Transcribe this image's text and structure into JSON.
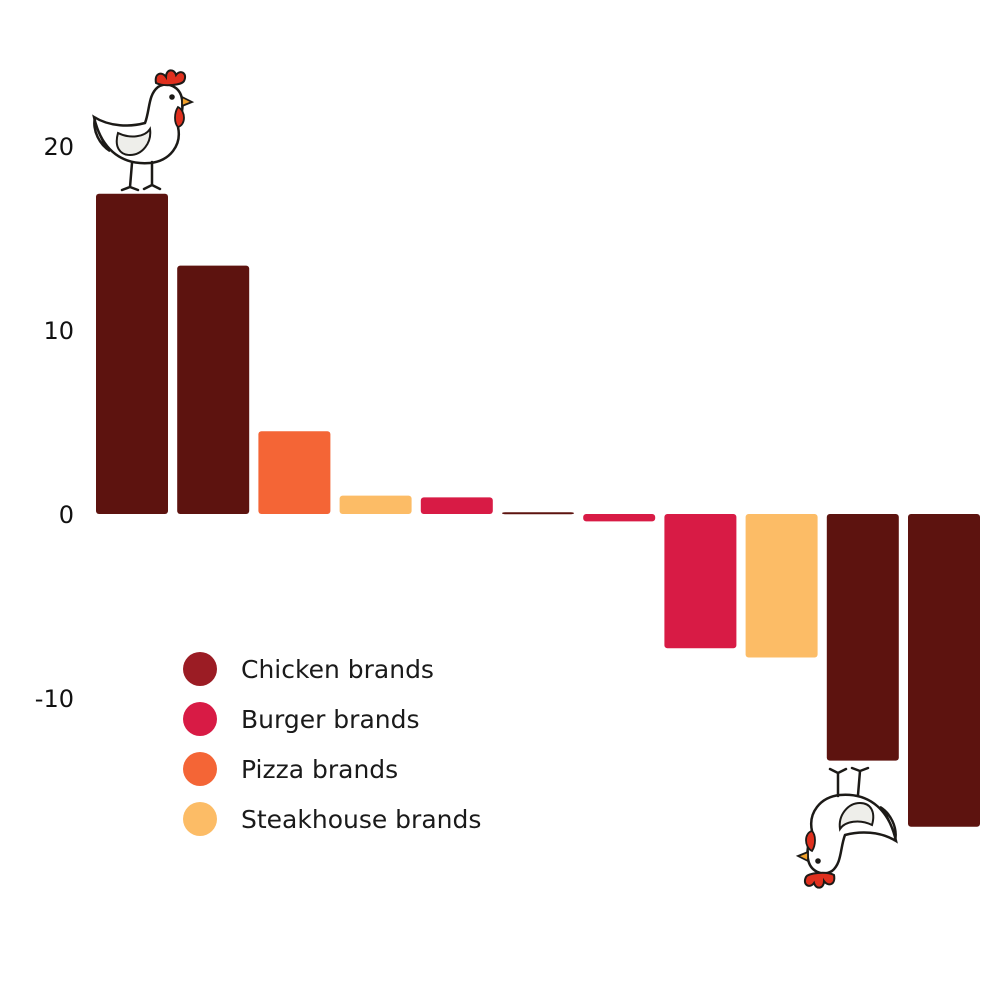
{
  "chart_data": {
    "type": "bar",
    "title": "",
    "xlabel": "",
    "ylabel": "",
    "ylim": [
      -14,
      25
    ],
    "yticks": [
      20,
      10,
      0,
      -10
    ],
    "ytick_labels": [
      "20",
      "10",
      "0",
      "-10"
    ],
    "grid": false,
    "legend_position": "lower-left",
    "categories": [
      "",
      "",
      "",
      "",
      "",
      "",
      "",
      "",
      "",
      "",
      ""
    ],
    "values": [
      17.4,
      13.5,
      4.5,
      1.0,
      0.9,
      0.1,
      -0.4,
      -7.3,
      -7.8,
      -13.4,
      -17.0
    ],
    "groups": [
      "chicken",
      "chicken",
      "pizza",
      "steakhouse",
      "burger",
      "chicken",
      "burger",
      "burger",
      "steakhouse",
      "chicken",
      "chicken"
    ],
    "legend": [
      {
        "key": "chicken",
        "label": "Chicken brands",
        "color": "#9b1c24"
      },
      {
        "key": "burger",
        "label": "Burger brands",
        "color": "#d81b45"
      },
      {
        "key": "pizza",
        "label": "Pizza brands",
        "color": "#f46536"
      },
      {
        "key": "steakhouse",
        "label": "Steakhouse brands",
        "color": "#fcbc66"
      }
    ],
    "bar_colors": {
      "chicken": "#5d130f",
      "burger": "#d81b45",
      "pizza": "#f46536",
      "steakhouse": "#fcbc66"
    },
    "decorations": [
      "chicken-icon-standing",
      "chicken-icon-upside-down"
    ]
  }
}
